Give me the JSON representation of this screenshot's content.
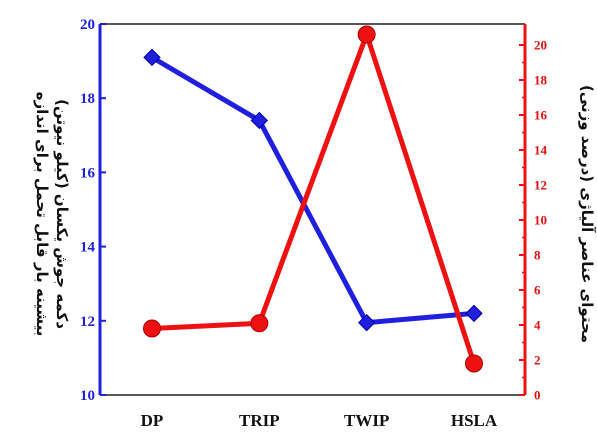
{
  "chart_data": {
    "type": "line",
    "categories": [
      "DP",
      "TRIP",
      "TWIP",
      "HSLA"
    ],
    "series": [
      {
        "name": "",
        "axis": "left",
        "color": "#1f1fdd",
        "values": [
          19.1,
          17.4,
          11.95,
          12.2
        ]
      },
      {
        "name": "",
        "axis": "right",
        "color": "#ee1111",
        "values": [
          3.8,
          4.1,
          20.6,
          1.8
        ]
      }
    ],
    "y_left": {
      "label_line1": "بیشینه بار قابل تحمل برای اندازه",
      "label_line2": "دکمه جوش یکسان (کیلو نیوتن)",
      "ylim": [
        10,
        20
      ],
      "ticks": [
        10,
        12,
        14,
        16,
        18,
        20
      ],
      "color": "#1f1fdd"
    },
    "y_right": {
      "label": "محتوای عناصر آلیاژی (درصد وزنی)",
      "ylim": [
        0,
        21.2
      ],
      "ticks": [
        0,
        2,
        4,
        6,
        8,
        10,
        12,
        14,
        16,
        18,
        20
      ],
      "color": "#ee1111"
    },
    "grid": false,
    "legend": "none"
  }
}
